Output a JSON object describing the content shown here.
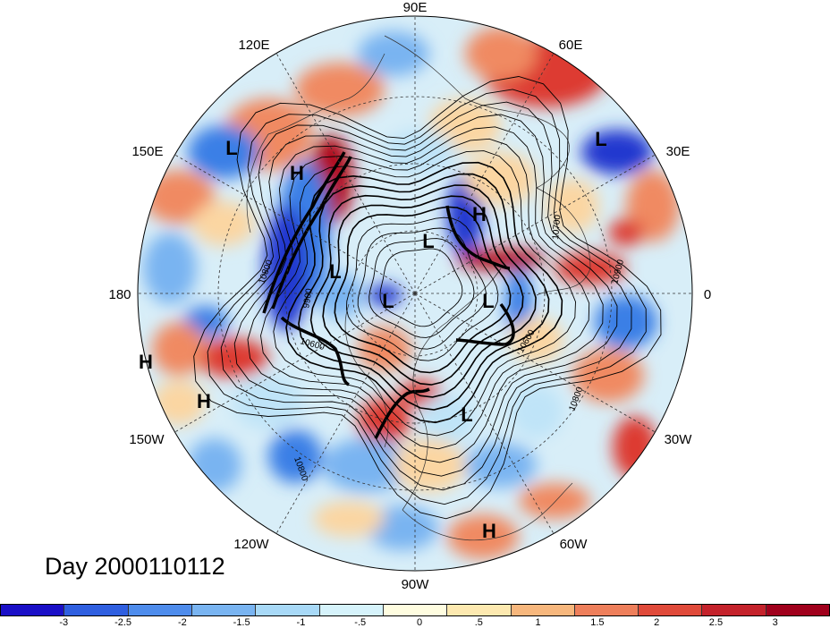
{
  "date_label": "Day 2000110112",
  "longitude_labels": [
    {
      "text": "90E"
    },
    {
      "text": "60E"
    },
    {
      "text": "30E"
    },
    {
      "text": "0"
    },
    {
      "text": "30W"
    },
    {
      "text": "60W"
    },
    {
      "text": "90W"
    },
    {
      "text": "120W"
    },
    {
      "text": "150W"
    },
    {
      "text": "180"
    },
    {
      "text": "150E"
    },
    {
      "text": "120E"
    }
  ],
  "pressure_centers": [
    "L",
    "H",
    "H",
    "L",
    "L",
    "L",
    "L",
    "L",
    "H",
    "H",
    "L",
    "H"
  ],
  "contour_labels": [
    "10700",
    "10900",
    "9900",
    "10600",
    "10800",
    "10800",
    "10600",
    "10800"
  ],
  "colorbar": {
    "colors": [
      "#1a0fc7",
      "#2f5fe0",
      "#4e8cec",
      "#79b4f1",
      "#a8d9f7",
      "#d6f3fb",
      "#fffde0",
      "#fde9b0",
      "#f7b77d",
      "#ee7f5b",
      "#e04a3a",
      "#c4222b",
      "#a0001c"
    ],
    "ticks": [
      "-3",
      "-2.5",
      "-2",
      "-1.5",
      "-1",
      "-.5",
      "0",
      ".5",
      "1",
      "1.5",
      "2",
      "2.5",
      "3"
    ]
  }
}
